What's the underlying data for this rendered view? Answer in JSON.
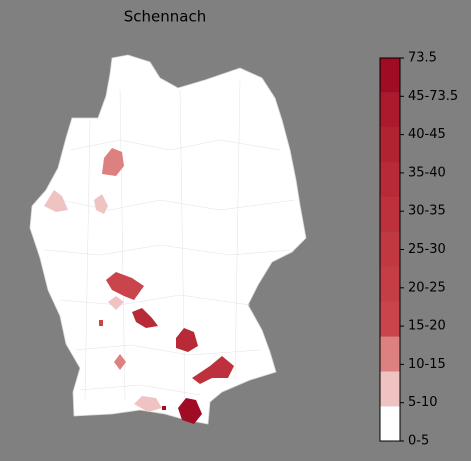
{
  "title": "Schennach",
  "legend": {
    "ticks": [
      "0-5",
      "5-10",
      "10-15",
      "15-20",
      "20-25",
      "25-30",
      "30-35",
      "35-40",
      "40-45",
      "45-73.5",
      "73.5"
    ],
    "colors": [
      "#ffffff",
      "#f0c3c3",
      "#dc8080",
      "#c9444b",
      "#c53e46",
      "#c13841",
      "#bd313c",
      "#b82a37",
      "#b22332",
      "#ab1a2d",
      "#a10c25"
    ]
  }
}
